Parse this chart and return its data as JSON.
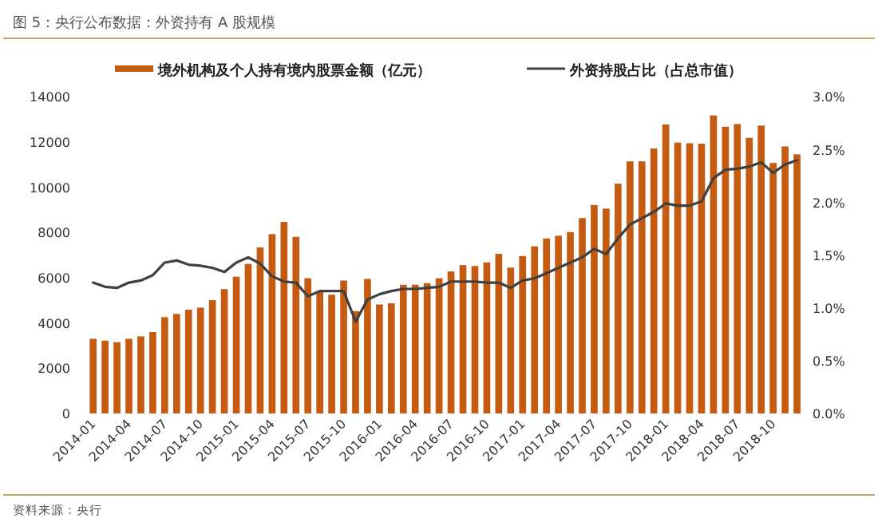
{
  "chart_data": {
    "type": "bar",
    "title": "图 5：央行公布数据：外资持有 A 股规模",
    "categories": [
      "2014-01",
      null,
      null,
      "2014-04",
      null,
      null,
      "2014-07",
      null,
      null,
      "2014-10",
      null,
      null,
      "2015-01",
      null,
      null,
      "2015-04",
      null,
      null,
      "2015-07",
      null,
      null,
      "2015-10",
      null,
      null,
      "2016-01",
      null,
      null,
      "2016-04",
      null,
      null,
      "2016-07",
      null,
      null,
      "2016-10",
      null,
      null,
      "2017-01",
      null,
      null,
      "2017-04",
      null,
      null,
      "2017-07",
      null,
      null,
      "2017-10",
      null,
      null,
      "2018-01",
      null,
      null,
      "2018-04",
      null,
      null,
      "2018-07",
      null,
      null,
      "2018-10",
      null,
      null
    ],
    "series": [
      {
        "name": "境外机构及个人持有境内股票金额（亿元）",
        "color": "#c55a11",
        "values": [
          3300,
          3220,
          3150,
          3300,
          3410,
          3600,
          4260,
          4400,
          4590,
          4680,
          5010,
          5500,
          6050,
          6610,
          7340,
          7930,
          8470,
          7810,
          5980,
          5390,
          5250,
          5880,
          4520,
          5950,
          4820,
          4870,
          5690,
          5690,
          5760,
          5980,
          6280,
          6560,
          6520,
          6680,
          7060,
          6450,
          6960,
          7390,
          7740,
          7860,
          8020,
          8640,
          9220,
          9060,
          10160,
          11150,
          11150,
          11720,
          12780,
          11980,
          11950,
          11930,
          13180,
          12680,
          12800,
          12190,
          12730,
          11080,
          11810,
          11460
        ]
      },
      {
        "name": "外资持股占比（占总市值）",
        "type": "line",
        "axis": "y2",
        "color": "#404040",
        "values": [
          1.24,
          1.2,
          1.19,
          1.24,
          1.26,
          1.31,
          1.43,
          1.45,
          1.41,
          1.4,
          1.38,
          1.34,
          1.43,
          1.48,
          1.42,
          1.3,
          1.25,
          1.24,
          1.11,
          1.16,
          1.16,
          1.16,
          0.87,
          1.08,
          1.13,
          1.16,
          1.18,
          1.18,
          1.19,
          1.2,
          1.25,
          1.25,
          1.25,
          1.24,
          1.24,
          1.19,
          1.26,
          1.28,
          1.33,
          1.38,
          1.43,
          1.48,
          1.56,
          1.51,
          1.66,
          1.79,
          1.85,
          1.91,
          1.99,
          1.97,
          1.97,
          2.01,
          2.23,
          2.31,
          2.32,
          2.34,
          2.38,
          2.28,
          2.36,
          2.4
        ]
      }
    ],
    "ylim": [
      0,
      14000
    ],
    "yticks": [
      0,
      2000,
      4000,
      6000,
      8000,
      10000,
      12000,
      14000
    ],
    "y2lim": [
      0,
      3
    ],
    "y2ticks": [
      {
        "value": 0,
        "label": "0.0%"
      },
      {
        "value": 0.5,
        "label": "0.5%"
      },
      {
        "value": 1,
        "label": "1.0%"
      },
      {
        "value": 1.5,
        "label": "1.5%"
      },
      {
        "value": 2,
        "label": "2.0%"
      },
      {
        "value": 2.5,
        "label": "2.5%"
      },
      {
        "value": 3,
        "label": "3.0%"
      }
    ],
    "legend": "top",
    "grid": false,
    "annotations": [
      "资料来源：央行"
    ]
  }
}
